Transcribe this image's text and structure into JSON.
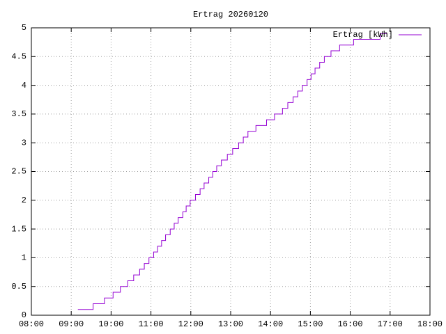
{
  "chart_data": {
    "type": "step",
    "title": "Ertrag 20260120",
    "x": [
      "09:10",
      "09:33",
      "09:50",
      "10:03",
      "10:14",
      "10:25",
      "10:34",
      "10:43",
      "10:50",
      "10:57",
      "11:04",
      "11:10",
      "11:16",
      "11:22",
      "11:29",
      "11:35",
      "11:41",
      "11:48",
      "11:53",
      "11:59",
      "12:07",
      "12:14",
      "12:20",
      "12:27",
      "12:33",
      "12:39",
      "12:46",
      "12:55",
      "13:03",
      "13:12",
      "13:19",
      "13:26",
      "13:38",
      "13:54",
      "14:06",
      "14:18",
      "14:26",
      "14:34",
      "14:41",
      "14:48",
      "14:55",
      "15:01",
      "15:07",
      "15:14",
      "15:21",
      "15:31",
      "15:44",
      "16:05",
      "16:45",
      "16:55"
    ],
    "series": [
      {
        "name": "Ertrag [kWh]",
        "color": "#9400d3",
        "values": [
          0.1,
          0.2,
          0.3,
          0.4,
          0.5,
          0.6,
          0.7,
          0.8,
          0.9,
          1.0,
          1.1,
          1.2,
          1.3,
          1.4,
          1.5,
          1.6,
          1.7,
          1.8,
          1.9,
          2.0,
          2.1,
          2.2,
          2.3,
          2.4,
          2.5,
          2.6,
          2.7,
          2.8,
          2.9,
          3.0,
          3.1,
          3.2,
          3.3,
          3.4,
          3.5,
          3.6,
          3.7,
          3.8,
          3.9,
          4.0,
          4.1,
          4.2,
          4.3,
          4.4,
          4.5,
          4.6,
          4.7,
          4.8,
          4.9,
          4.9
        ]
      }
    ],
    "xlim": [
      "08:00",
      "18:00"
    ],
    "xticks": [
      "08:00",
      "09:00",
      "10:00",
      "11:00",
      "12:00",
      "13:00",
      "14:00",
      "15:00",
      "16:00",
      "17:00",
      "18:00"
    ],
    "ylim": [
      0,
      5
    ],
    "yticks": [
      0,
      0.5,
      1,
      1.5,
      2,
      2.5,
      3,
      3.5,
      4,
      4.5,
      5
    ],
    "grid": true,
    "legend": "top-right"
  }
}
